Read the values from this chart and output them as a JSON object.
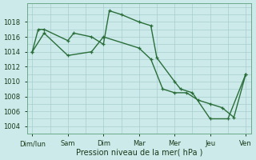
{
  "background_color": "#cceaea",
  "grid_color": "#a8cccc",
  "line_color": "#2a6e3a",
  "xlabel": "Pression niveau de la mer( hPa )",
  "xtick_labels": [
    "Dim/lun",
    "Sam",
    "Dim",
    "Mar",
    "Mer",
    "Jeu",
    "Ven"
  ],
  "ylim": [
    1003.5,
    1020.5
  ],
  "yticks": [
    1004,
    1006,
    1008,
    1010,
    1012,
    1014,
    1016,
    1018
  ],
  "line1_x": [
    0,
    0.25,
    0.5,
    1.5,
    1.75,
    2.5,
    3.0,
    3.25,
    3.75,
    4.5,
    5.0,
    5.25,
    6.0,
    6.25,
    6.75,
    7.5,
    8.25,
    9.0
  ],
  "line1_y": [
    1014,
    1017,
    1017,
    1015.5,
    1016.5,
    1016,
    1015,
    1019.5,
    1019,
    1018,
    1017.5,
    1013.2,
    1010,
    1009,
    1008.5,
    1005,
    1005,
    1011
  ],
  "line2_x": [
    0,
    0.5,
    1.5,
    2.5,
    3.0,
    4.5,
    5.0,
    5.5,
    6.0,
    6.5,
    7.0,
    7.5,
    8.0,
    8.5,
    9.0
  ],
  "line2_y": [
    1014,
    1016.5,
    1013.5,
    1014,
    1016,
    1014.5,
    1013,
    1009,
    1008.5,
    1008.5,
    1007.5,
    1007,
    1006.5,
    1005.2,
    1011
  ],
  "figsize": [
    3.2,
    2.0
  ],
  "dpi": 100
}
